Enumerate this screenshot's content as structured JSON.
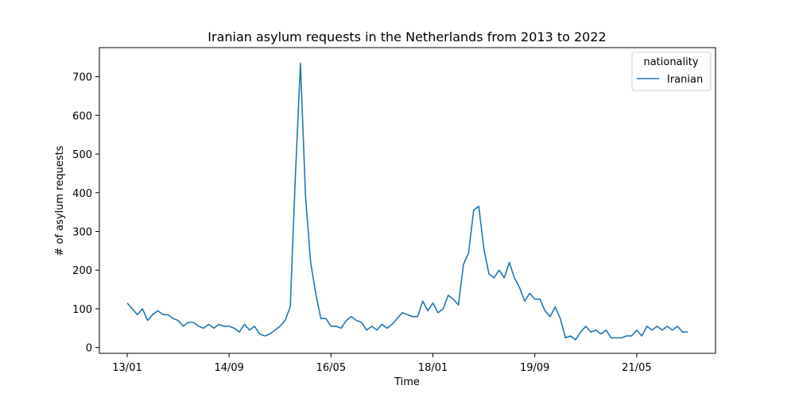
{
  "chart_data": {
    "type": "line",
    "title": "Iranian asylum requests in the Netherlands from 2013 to 2022",
    "xlabel": "Time",
    "ylabel": "# of asylum requests",
    "x_tick_labels": [
      "13/01",
      "14/09",
      "16/05",
      "18/01",
      "19/09",
      "21/05"
    ],
    "y_ticks": [
      0,
      100,
      200,
      300,
      400,
      500,
      600,
      700
    ],
    "ylim": [
      -15,
      775
    ],
    "legend": {
      "title": "nationality",
      "placement": "top-right",
      "entries": [
        "Iranian"
      ]
    },
    "series": [
      {
        "name": "Iranian",
        "color": "#1f77b4",
        "values": [
          115,
          100,
          85,
          100,
          70,
          85,
          95,
          85,
          85,
          75,
          70,
          55,
          65,
          65,
          55,
          50,
          60,
          50,
          60,
          55,
          55,
          50,
          40,
          60,
          45,
          55,
          35,
          30,
          35,
          45,
          55,
          70,
          105,
          440,
          735,
          390,
          220,
          140,
          75,
          75,
          55,
          55,
          50,
          70,
          80,
          70,
          65,
          45,
          55,
          45,
          60,
          50,
          60,
          75,
          90,
          85,
          80,
          80,
          120,
          95,
          115,
          90,
          100,
          135,
          125,
          110,
          215,
          245,
          355,
          365,
          255,
          190,
          180,
          200,
          180,
          220,
          180,
          155,
          120,
          140,
          125,
          125,
          95,
          80,
          105,
          75,
          25,
          30,
          20,
          40,
          55,
          40,
          45,
          35,
          45,
          25,
          25,
          25,
          30,
          30,
          45,
          30,
          55,
          45,
          55,
          45,
          55,
          45,
          55,
          40,
          40
        ]
      }
    ]
  }
}
